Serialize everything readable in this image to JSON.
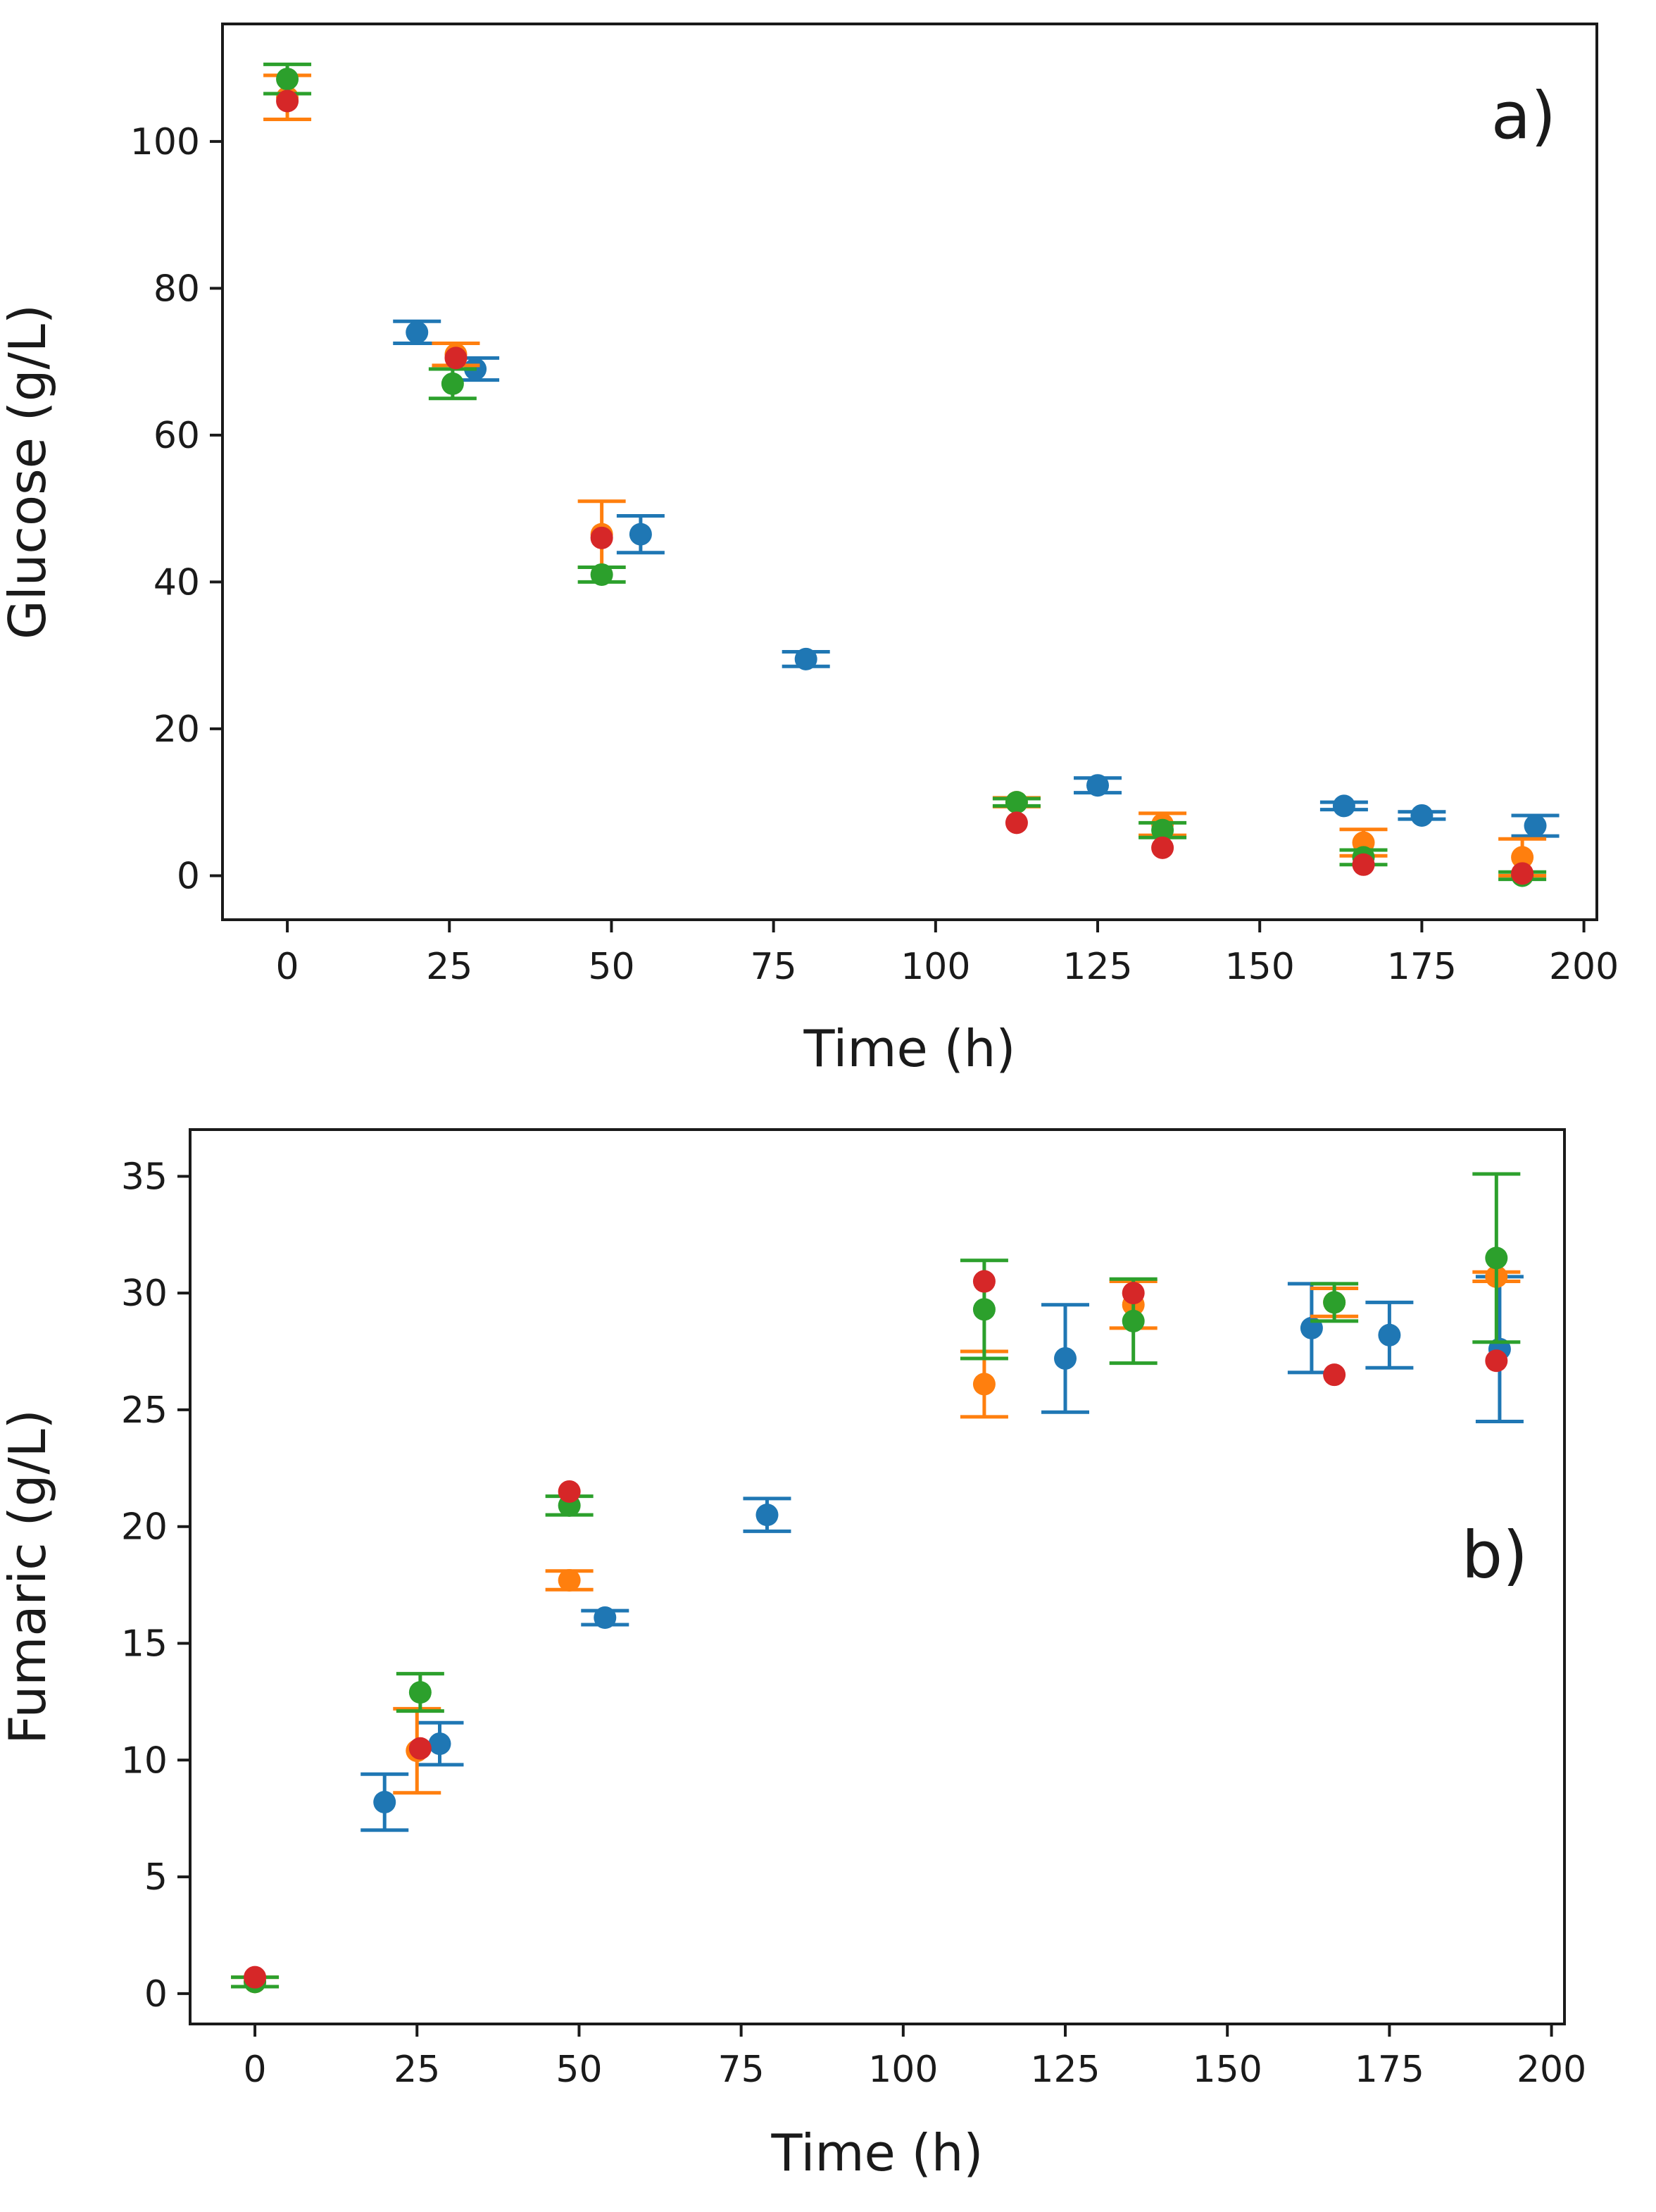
{
  "chart_data": [
    {
      "type": "scatter",
      "title": "",
      "panel_label": "a)",
      "xlabel": "Time (h)",
      "ylabel": "Glucose (g/L)",
      "xlim": [
        -10,
        202
      ],
      "ylim": [
        -6,
        116
      ],
      "xticks": [
        0,
        25,
        50,
        75,
        100,
        125,
        150,
        175,
        200
      ],
      "yticks": [
        0,
        20,
        40,
        60,
        80,
        100
      ],
      "legend": "none",
      "series": [
        {
          "name": "series-blue",
          "color": "#1f77b4",
          "points": [
            {
              "x": 20,
              "y": 74,
              "err": 1.5
            },
            {
              "x": 29,
              "y": 69,
              "err": 1.5
            },
            {
              "x": 54.5,
              "y": 46.5,
              "err": 2.5
            },
            {
              "x": 80,
              "y": 29.5,
              "err": 1
            },
            {
              "x": 125,
              "y": 12.3,
              "err": 1
            },
            {
              "x": 163,
              "y": 9.5,
              "err": 0.5
            },
            {
              "x": 175,
              "y": 8.2,
              "err": 0.5
            },
            {
              "x": 192.5,
              "y": 6.8,
              "err": 1.4
            }
          ]
        },
        {
          "name": "series-orange",
          "color": "#ff7f0e",
          "points": [
            {
              "x": 0,
              "y": 106,
              "err": 3
            },
            {
              "x": 26,
              "y": 71,
              "err": 1.5
            },
            {
              "x": 48.5,
              "y": 46.5,
              "err": 4.5
            },
            {
              "x": 112.5,
              "y": 10,
              "err": 0.6
            },
            {
              "x": 135,
              "y": 7,
              "err": 1.5
            },
            {
              "x": 166,
              "y": 4.5,
              "err": 1.8
            },
            {
              "x": 190.5,
              "y": 2.5,
              "err": 2.5
            }
          ]
        },
        {
          "name": "series-green",
          "color": "#2ca02c",
          "points": [
            {
              "x": 0,
              "y": 108.5,
              "err": 2
            },
            {
              "x": 25.5,
              "y": 67,
              "err": 2
            },
            {
              "x": 48.5,
              "y": 41,
              "err": 1
            },
            {
              "x": 112.5,
              "y": 10,
              "err": 0.5
            },
            {
              "x": 135,
              "y": 6.2,
              "err": 1
            },
            {
              "x": 166,
              "y": 2.5,
              "err": 1
            },
            {
              "x": 190.5,
              "y": 0,
              "err": 0.5
            }
          ]
        },
        {
          "name": "series-red",
          "color": "#d62728",
          "points": [
            {
              "x": 0,
              "y": 105.5
            },
            {
              "x": 26,
              "y": 70.5
            },
            {
              "x": 48.5,
              "y": 46
            },
            {
              "x": 112.5,
              "y": 7.2
            },
            {
              "x": 135,
              "y": 3.8
            },
            {
              "x": 166,
              "y": 1.5
            },
            {
              "x": 190.5,
              "y": 0.3
            }
          ]
        }
      ]
    },
    {
      "type": "scatter",
      "title": "",
      "panel_label": "b)",
      "xlabel": "Time (h)",
      "ylabel": "Fumaric (g/L)",
      "xlim": [
        -10,
        202
      ],
      "ylim": [
        -1.3,
        37
      ],
      "xticks": [
        0,
        25,
        50,
        75,
        100,
        125,
        150,
        175,
        200
      ],
      "yticks": [
        0,
        5,
        10,
        15,
        20,
        25,
        30,
        35
      ],
      "legend": "none",
      "series": [
        {
          "name": "series-blue",
          "color": "#1f77b4",
          "points": [
            {
              "x": 20,
              "y": 8.2,
              "err": 1.2
            },
            {
              "x": 28.5,
              "y": 10.7,
              "err": 0.9
            },
            {
              "x": 54,
              "y": 16.1,
              "err": 0.3
            },
            {
              "x": 79,
              "y": 20.5,
              "err": 0.7
            },
            {
              "x": 125,
              "y": 27.2,
              "err": 2.3
            },
            {
              "x": 163,
              "y": 28.5,
              "err": 1.9
            },
            {
              "x": 175,
              "y": 28.2,
              "err": 1.4
            },
            {
              "x": 192,
              "y": 27.6,
              "err": 3.1
            }
          ]
        },
        {
          "name": "series-orange",
          "color": "#ff7f0e",
          "points": [
            {
              "x": 0,
              "y": 0.5,
              "err": 0.2
            },
            {
              "x": 25,
              "y": 10.4,
              "err": 1.8
            },
            {
              "x": 48.5,
              "y": 17.7,
              "err": 0.4
            },
            {
              "x": 112.5,
              "y": 26.1,
              "err": 1.4
            },
            {
              "x": 135.5,
              "y": 29.5,
              "err": 1
            },
            {
              "x": 166.5,
              "y": 29.6,
              "err": 0.6
            },
            {
              "x": 191.5,
              "y": 30.7,
              "err": 0.2
            }
          ]
        },
        {
          "name": "series-green",
          "color": "#2ca02c",
          "points": [
            {
              "x": 0,
              "y": 0.5,
              "err": 0.2
            },
            {
              "x": 25.5,
              "y": 12.9,
              "err": 0.8
            },
            {
              "x": 48.5,
              "y": 20.9,
              "err": 0.4
            },
            {
              "x": 112.5,
              "y": 29.3,
              "err": 2.1
            },
            {
              "x": 135.5,
              "y": 28.8,
              "err": 1.8
            },
            {
              "x": 166.5,
              "y": 29.6,
              "err": 0.8
            },
            {
              "x": 191.5,
              "y": 31.5,
              "err": 3.6
            }
          ]
        },
        {
          "name": "series-red",
          "color": "#d62728",
          "points": [
            {
              "x": 0,
              "y": 0.7
            },
            {
              "x": 25.5,
              "y": 10.5
            },
            {
              "x": 48.5,
              "y": 21.5
            },
            {
              "x": 112.5,
              "y": 30.5
            },
            {
              "x": 135.5,
              "y": 30
            },
            {
              "x": 166.5,
              "y": 26.5
            },
            {
              "x": 191.5,
              "y": 27.1
            }
          ]
        }
      ]
    }
  ]
}
